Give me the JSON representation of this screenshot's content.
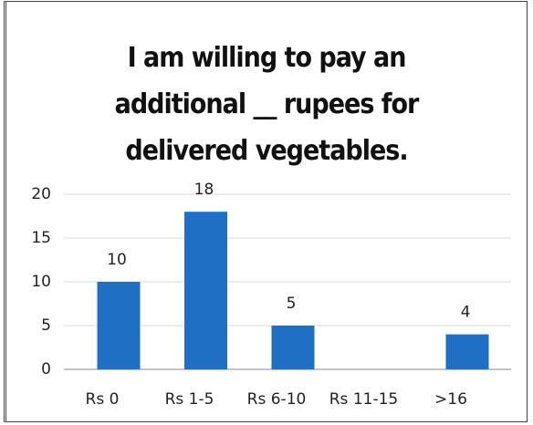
{
  "chart_data": {
    "type": "bar",
    "title": "I am willing to pay an additional __ rupees for delivered vegetables.",
    "categories": [
      "Rs 0",
      "Rs 1-5",
      "Rs 6-10",
      "Rs 11-15",
      ">16"
    ],
    "values": [
      10,
      18,
      5,
      0,
      4
    ],
    "color": "#1f6fc5",
    "ylim": [
      0,
      20
    ],
    "yticks": [
      0,
      5,
      10,
      15,
      20
    ],
    "grid": true
  }
}
